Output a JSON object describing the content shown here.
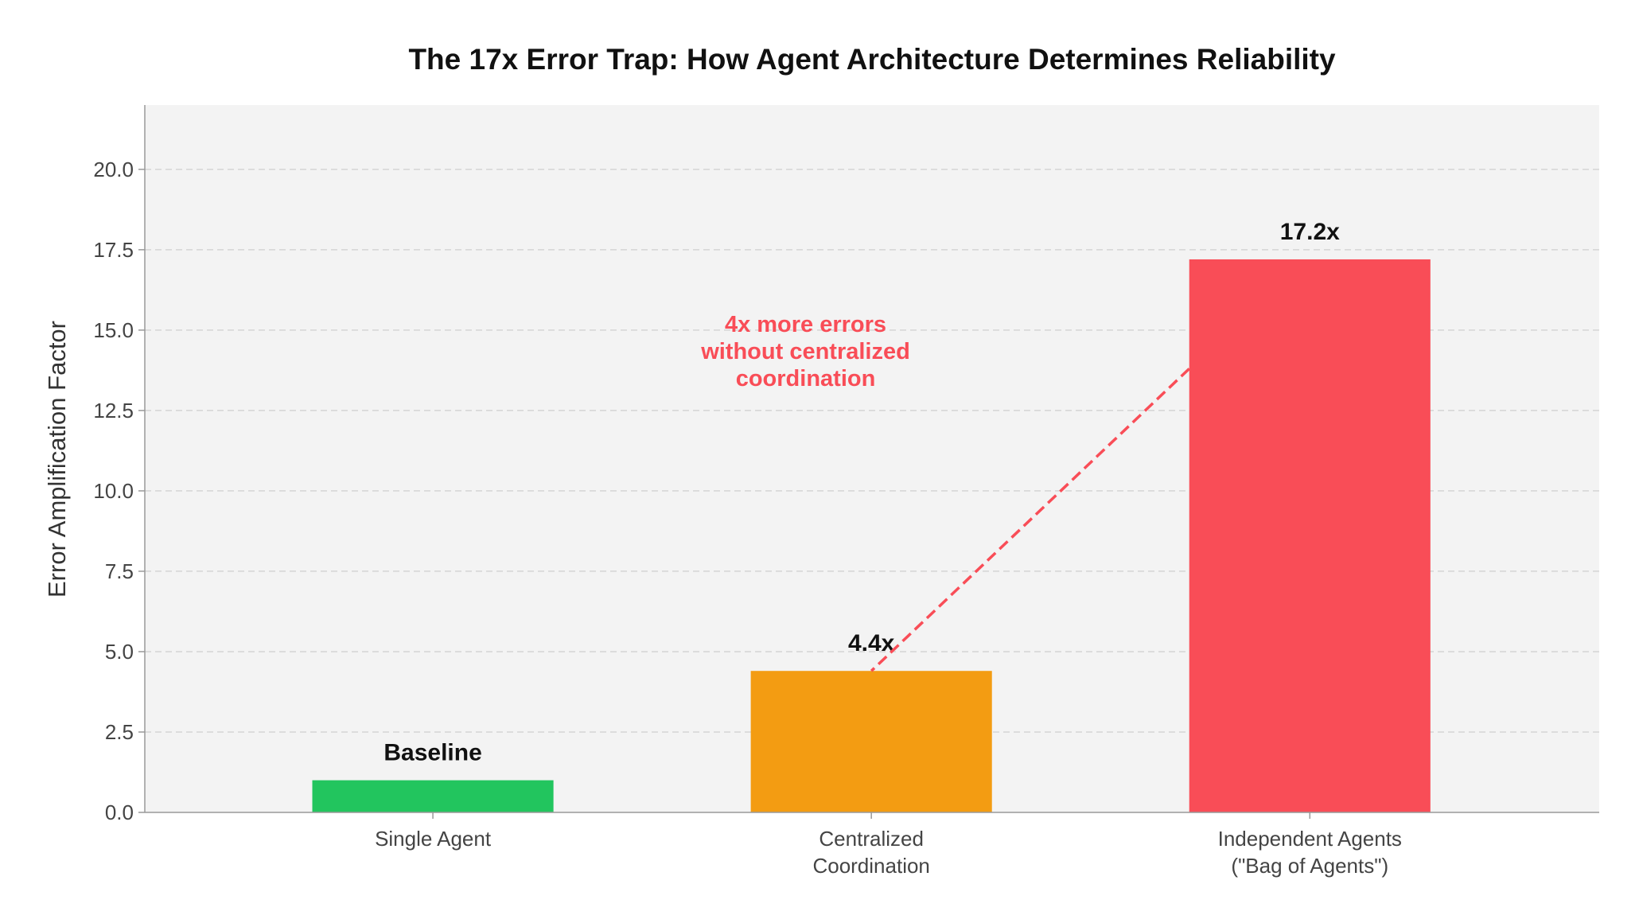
{
  "chart_data": {
    "type": "bar",
    "title": "The 17x Error Trap: How Agent Architecture Determines Reliability",
    "xlabel": "",
    "ylabel": "Error Amplification Factor",
    "categories": [
      [
        "Single Agent"
      ],
      [
        "Centralized",
        "Coordination"
      ],
      [
        "Independent Agents",
        "(\"Bag of Agents\")"
      ]
    ],
    "values": [
      1.0,
      4.4,
      17.2
    ],
    "bar_labels": [
      "Baseline",
      "4.4x",
      "17.2x"
    ],
    "colors": [
      "#22C55E",
      "#F39C12",
      "#F94D57"
    ],
    "ylim": [
      0,
      22
    ],
    "yticks": [
      0.0,
      2.5,
      5.0,
      7.5,
      10.0,
      12.5,
      15.0,
      17.5,
      20.0
    ],
    "ytick_labels": [
      "0.0",
      "2.5",
      "5.0",
      "7.5",
      "10.0",
      "12.5",
      "15.0",
      "17.5",
      "20.0"
    ],
    "grid": "y, dashed",
    "background": "#F3F3F3",
    "annotation": {
      "lines": [
        "4x more errors",
        "without centralized",
        "coordination"
      ],
      "color": "#F94D57",
      "text_at": [
        0.85,
        14.1
      ],
      "arrow_from": [
        1.725,
        13.8
      ],
      "arrow_to": [
        1.0,
        4.4
      ]
    }
  }
}
